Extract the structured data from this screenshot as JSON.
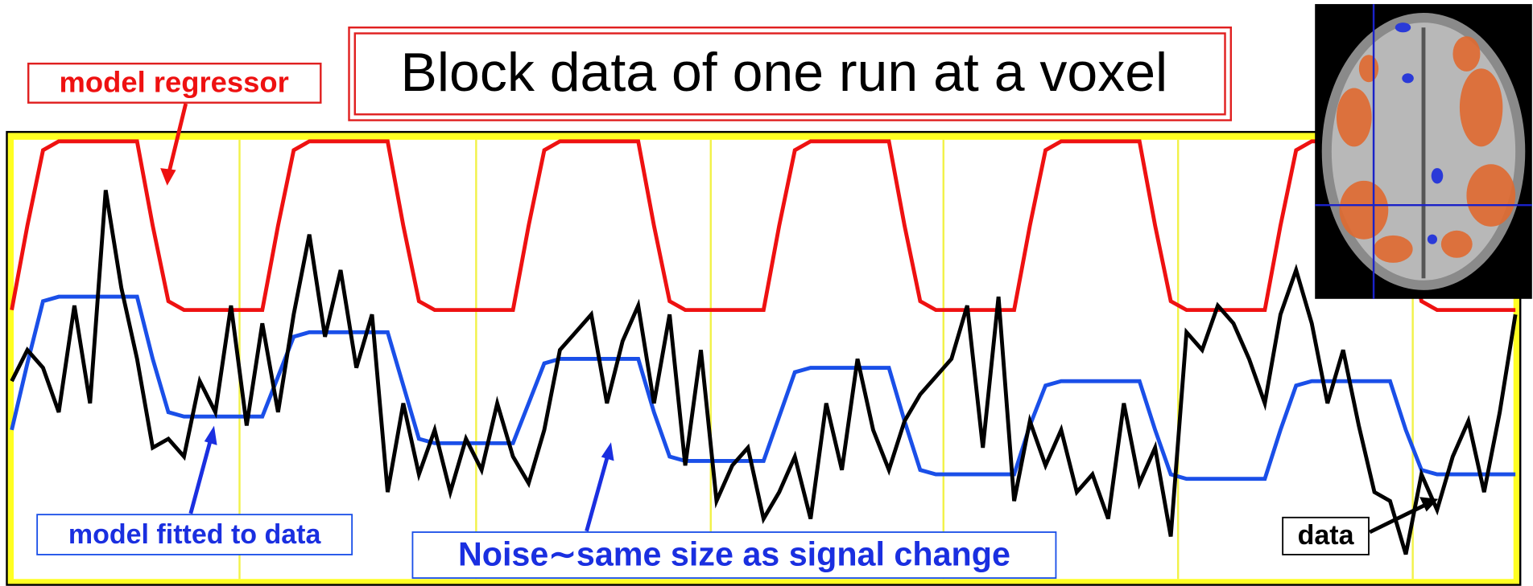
{
  "chart_data": {
    "type": "line",
    "title": "Block data of one run at a voxel",
    "annotations": [
      "Noise∼same size as signal change"
    ],
    "ylim": [
      0,
      100
    ],
    "series": [
      {
        "name": "model regressor",
        "color": "#ee1111",
        "values": [
          61,
          80,
          97,
          99,
          99,
          99,
          99,
          99,
          99,
          80,
          63,
          61,
          61,
          61,
          61,
          61,
          61,
          80,
          97,
          99,
          99,
          99,
          99,
          99,
          99,
          80,
          63,
          61,
          61,
          61,
          61,
          61,
          61,
          80,
          97,
          99,
          99,
          99,
          99,
          99,
          99,
          80,
          63,
          61,
          61,
          61,
          61,
          61,
          61,
          80,
          97,
          99,
          99,
          99,
          99,
          99,
          99,
          80,
          63,
          61,
          61,
          61,
          61,
          61,
          61,
          80,
          97,
          99,
          99,
          99,
          99,
          99,
          99,
          80,
          63,
          61,
          61,
          61,
          61,
          61,
          61,
          80,
          97,
          99,
          99,
          99,
          99,
          99,
          99,
          80,
          63,
          61,
          61,
          61,
          61,
          61,
          61
        ]
      },
      {
        "name": "model fitted to data",
        "color": "#1a4fe8",
        "values": [
          34,
          49,
          63,
          64,
          64,
          64,
          64,
          64,
          64,
          50,
          38,
          37,
          37,
          37,
          37,
          37,
          37,
          46,
          55,
          56,
          56,
          56,
          56,
          56,
          56,
          44,
          32,
          31,
          31,
          31,
          31,
          31,
          31,
          40,
          49,
          50,
          50,
          50,
          50,
          50,
          50,
          38,
          28,
          27,
          27,
          27,
          27,
          27,
          27,
          37,
          47,
          48,
          48,
          48,
          48,
          48,
          48,
          36,
          25,
          24,
          24,
          24,
          24,
          24,
          24,
          35,
          44,
          45,
          45,
          45,
          45,
          45,
          45,
          34,
          24,
          23,
          23,
          23,
          23,
          23,
          23,
          34,
          44,
          45,
          45,
          45,
          45,
          45,
          45,
          34,
          25,
          24,
          24,
          24,
          24,
          24,
          24
        ]
      },
      {
        "name": "data",
        "color": "#000000",
        "values": [
          45,
          52,
          48,
          38,
          62,
          40,
          88,
          66,
          50,
          30,
          32,
          28,
          45,
          38,
          62,
          35,
          58,
          38,
          60,
          78,
          55,
          70,
          48,
          60,
          20,
          40,
          24,
          34,
          20,
          32,
          25,
          40,
          28,
          22,
          34,
          52,
          56,
          60,
          40,
          54,
          62,
          40,
          60,
          26,
          52,
          18,
          26,
          30,
          14,
          20,
          28,
          14,
          40,
          25,
          50,
          34,
          25,
          36,
          42,
          46,
          50,
          62,
          30,
          64,
          18,
          36,
          26,
          34,
          20,
          24,
          14,
          40,
          22,
          30,
          10,
          56,
          52,
          62,
          58,
          50,
          40,
          60,
          70,
          58,
          40,
          52,
          35,
          20,
          18,
          6,
          24,
          16,
          28,
          36,
          20,
          38,
          60
        ]
      }
    ]
  }
}
